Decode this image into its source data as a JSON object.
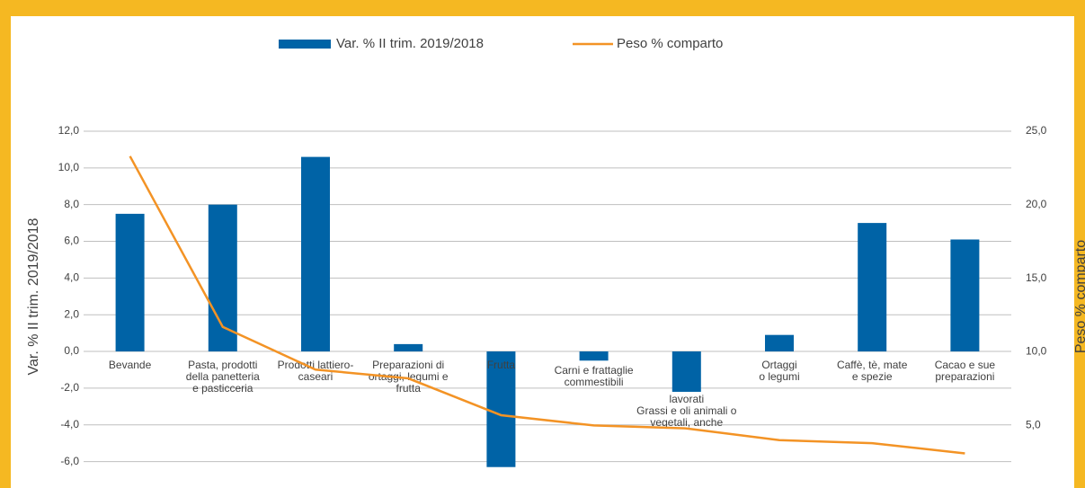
{
  "chart_data": {
    "type": "bar-line",
    "y_label": "Var. % II trim. 2019/2018",
    "y2_label": "Peso % comparto",
    "categories": [
      [
        "Bevande"
      ],
      [
        "Pasta, prodotti",
        "della panetteria",
        "e pasticceria"
      ],
      [
        "Prodotti lattiero-",
        "caseari"
      ],
      [
        "Preparazioni di",
        "ortaggi, legumi e",
        "frutta"
      ],
      [
        "Frutta"
      ],
      [
        "Carni e frattaglie",
        "commestibili"
      ],
      [
        "lavorati",
        "Grassi e oli animali o",
        "vegetali, anche"
      ],
      [
        "Ortaggi",
        "o legumi"
      ],
      [
        "Caffè, tè, mate",
        "e spezie"
      ],
      [
        "Cacao e sue",
        "preparazioni"
      ]
    ],
    "series": [
      {
        "name": "Var. % II trim. 2019/2018",
        "color": "#0063a6",
        "values": [
          7.5,
          8.0,
          10.6,
          0.4,
          -6.3,
          -0.5,
          -2.2,
          0.9,
          7.0,
          6.1
        ]
      },
      {
        "name": "Peso % comparto",
        "color": "#f39325",
        "axis": "y2",
        "values": [
          23.3,
          11.7,
          8.8,
          8.2,
          5.7,
          5.0,
          4.8,
          4.0,
          3.8,
          3.1
        ]
      }
    ],
    "ylim": [
      -7,
      12
    ],
    "yticks": [
      {
        "value": -6,
        "label": "-6,0"
      },
      {
        "value": -4,
        "label": "-4,0"
      },
      {
        "value": -2,
        "label": "-2,0"
      },
      {
        "value": 0,
        "label": "0,0"
      },
      {
        "value": 2,
        "label": "2,0"
      },
      {
        "value": 4,
        "label": "4,0"
      },
      {
        "value": 6,
        "label": "6,0"
      },
      {
        "value": 8,
        "label": "8,0"
      },
      {
        "value": 10,
        "label": "10,0"
      },
      {
        "value": 12,
        "label": "12,0"
      }
    ],
    "y2lim": [
      1.3,
      25
    ],
    "y2ticks": [
      {
        "value": 5,
        "label": "5,0"
      },
      {
        "value": 10,
        "label": "10,0"
      },
      {
        "value": 15,
        "label": "15,0"
      },
      {
        "value": 20,
        "label": "20,0"
      },
      {
        "value": 25,
        "label": "25,0"
      }
    ],
    "grid": true,
    "legend": "top"
  }
}
